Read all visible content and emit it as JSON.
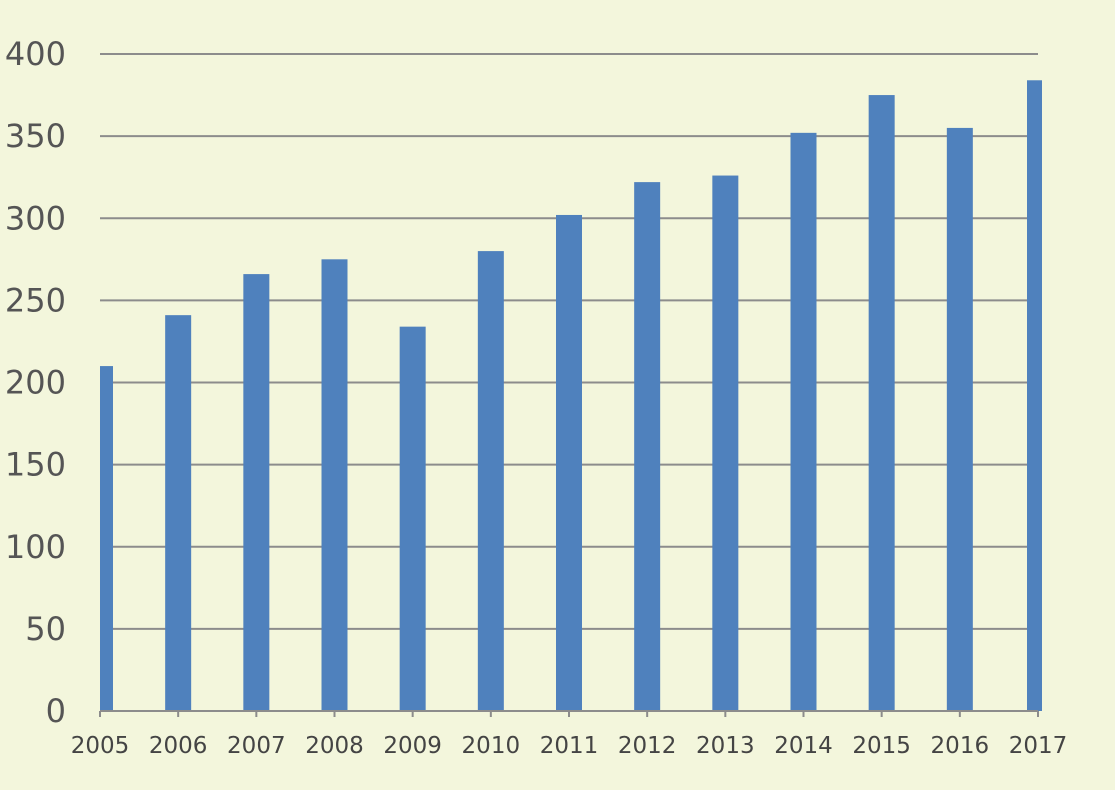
{
  "chart_data": {
    "type": "bar",
    "categories": [
      "2005",
      "2006",
      "2007",
      "2008",
      "2009",
      "2010",
      "2011",
      "2012",
      "2013",
      "2014",
      "2015",
      "2016",
      "2017"
    ],
    "values": [
      210,
      241,
      266,
      275,
      234,
      280,
      302,
      322,
      326,
      352,
      375,
      355,
      384
    ],
    "title": "",
    "xlabel": "",
    "ylabel": "",
    "ylim": [
      0,
      400
    ],
    "yticks": [
      "0",
      "50",
      "100",
      "150",
      "200",
      "250",
      "300",
      "350",
      "400"
    ],
    "grid": true,
    "legend": "none",
    "colors": {
      "bar": "#4f81bd",
      "grid": "#8c8c8c",
      "background": "#f3f6dc"
    }
  }
}
